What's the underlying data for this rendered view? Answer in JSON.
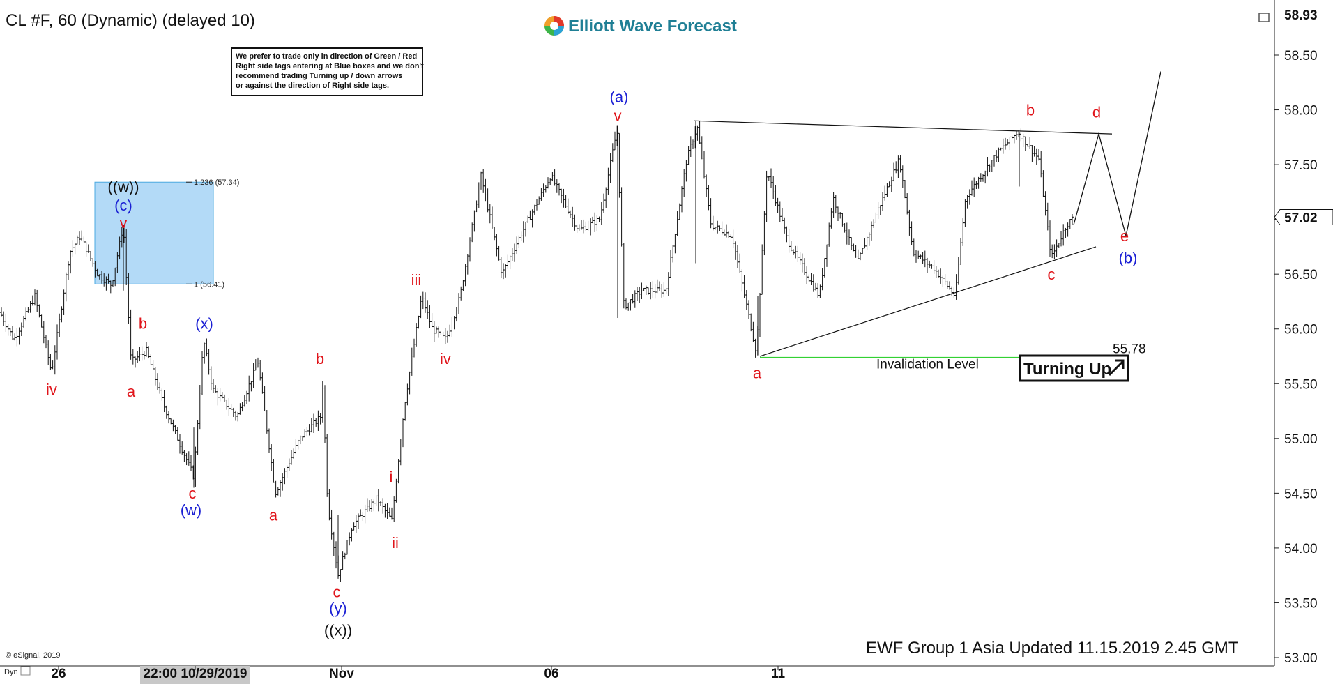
{
  "header": {
    "symbol_title": "CL #F, 60 (Dynamic) (delayed 10)",
    "brand": "Elliott Wave Forecast"
  },
  "note_lines": [
    "We prefer to trade only in direction of Green / Red",
    "Right side tags entering at Blue boxes and we don't",
    "recommend trading Turning up / down arrows",
    "or against the direction of Right side tags."
  ],
  "blue_box": {
    "label_top": "1.236 (57.34)",
    "label_bottom": "1 (56.41)"
  },
  "footer": "EWF Group 1 Asia Updated 11.15.2019 2.45 GMT",
  "copyright": "© eSignal, 2019",
  "bottom_left": "Dyn",
  "invalidation": {
    "label": "Invalidation Level",
    "value": "55.78"
  },
  "turning_tag": "Turning Up",
  "colors": {
    "red": "#e0141a",
    "blue": "#1a1fd4",
    "black": "#111111",
    "box": "#b3daf7",
    "box_border": "#4aa8e0",
    "green": "#33d133"
  },
  "chart_data": {
    "type": "bar",
    "price_labels": {
      "top": "58.93",
      "current": "57.02"
    },
    "ylim": [
      53.0,
      59.0
    ],
    "y_ticks": [
      "58.50",
      "58.00",
      "57.50",
      "57.00",
      "56.50",
      "56.00",
      "55.50",
      "55.00",
      "54.50",
      "54.00",
      "53.50",
      "53.00"
    ],
    "x_ticks": [
      "26",
      "22:00 10/29/2019",
      "Nov",
      "06",
      "11"
    ],
    "price_path": [
      [
        0,
        56.15
      ],
      [
        20,
        55.9
      ],
      [
        50,
        56.3
      ],
      [
        74,
        55.6
      ],
      [
        100,
        56.7
      ],
      [
        115,
        56.85
      ],
      [
        140,
        56.5
      ],
      [
        160,
        56.4
      ],
      [
        177,
        56.95
      ],
      [
        188,
        55.7
      ],
      [
        210,
        55.8
      ],
      [
        235,
        55.3
      ],
      [
        278,
        54.65
      ],
      [
        292,
        55.9
      ],
      [
        305,
        55.45
      ],
      [
        340,
        55.2
      ],
      [
        370,
        55.7
      ],
      [
        395,
        54.5
      ],
      [
        430,
        55.0
      ],
      [
        460,
        55.2
      ],
      [
        462,
        55.6
      ],
      [
        470,
        54.4
      ],
      [
        485,
        53.75
      ],
      [
        505,
        54.2
      ],
      [
        540,
        54.45
      ],
      [
        562,
        54.25
      ],
      [
        580,
        55.3
      ],
      [
        605,
        56.3
      ],
      [
        620,
        56.0
      ],
      [
        640,
        55.9
      ],
      [
        660,
        56.3
      ],
      [
        690,
        57.4
      ],
      [
        720,
        56.5
      ],
      [
        750,
        56.9
      ],
      [
        790,
        57.4
      ],
      [
        830,
        56.9
      ],
      [
        860,
        57.0
      ],
      [
        885,
        57.82
      ],
      [
        895,
        56.2
      ],
      [
        920,
        56.35
      ],
      [
        955,
        56.35
      ],
      [
        985,
        57.55
      ],
      [
        1000,
        57.85
      ],
      [
        1020,
        56.95
      ],
      [
        1050,
        56.85
      ],
      [
        1085,
        55.78
      ],
      [
        1100,
        57.45
      ],
      [
        1130,
        56.8
      ],
      [
        1175,
        56.3
      ],
      [
        1195,
        57.2
      ],
      [
        1230,
        56.6
      ],
      [
        1260,
        57.1
      ],
      [
        1290,
        57.55
      ],
      [
        1310,
        56.7
      ],
      [
        1340,
        56.55
      ],
      [
        1370,
        56.3
      ],
      [
        1385,
        57.2
      ],
      [
        1430,
        57.6
      ],
      [
        1460,
        57.8
      ],
      [
        1490,
        57.55
      ],
      [
        1508,
        56.65
      ],
      [
        1530,
        56.95
      ],
      [
        1540,
        57.02
      ]
    ],
    "projection": [
      [
        1540,
        56.95
      ],
      [
        1576,
        57.78
      ],
      [
        1615,
        56.85
      ],
      [
        1665,
        58.35
      ]
    ],
    "triangle": {
      "upper": [
        [
          995,
          57.9
        ],
        [
          1595,
          57.78
        ]
      ],
      "lower": [
        [
          1090,
          55.75
        ],
        [
          1572,
          56.75
        ]
      ]
    },
    "invalidation_line": [
      [
        1090,
        55.74
      ],
      [
        1595,
        55.74
      ]
    ],
    "wave_labels": [
      {
        "text": "iv",
        "x": 74,
        "y": 55.4,
        "color": "red"
      },
      {
        "text": "((w))",
        "x": 177,
        "y": 57.25,
        "color": "black"
      },
      {
        "text": "(c)",
        "x": 177,
        "y": 57.08,
        "color": "blue"
      },
      {
        "text": "v",
        "x": 177,
        "y": 56.92,
        "color": "red"
      },
      {
        "text": "b",
        "x": 205,
        "y": 56.0,
        "color": "red"
      },
      {
        "text": "a",
        "x": 188,
        "y": 55.38,
        "color": "red"
      },
      {
        "text": "(x)",
        "x": 293,
        "y": 56.0,
        "color": "blue"
      },
      {
        "text": "c",
        "x": 276,
        "y": 54.45,
        "color": "red"
      },
      {
        "text": "(w)",
        "x": 274,
        "y": 54.3,
        "color": "blue"
      },
      {
        "text": "a",
        "x": 392,
        "y": 54.25,
        "color": "red"
      },
      {
        "text": "b",
        "x": 459,
        "y": 55.68,
        "color": "red"
      },
      {
        "text": "c",
        "x": 483,
        "y": 53.55,
        "color": "red"
      },
      {
        "text": "(y)",
        "x": 485,
        "y": 53.4,
        "color": "blue"
      },
      {
        "text": "((x))",
        "x": 485,
        "y": 53.2,
        "color": "black"
      },
      {
        "text": "i",
        "x": 561,
        "y": 54.6,
        "color": "red"
      },
      {
        "text": "ii",
        "x": 567,
        "y": 54.0,
        "color": "red"
      },
      {
        "text": "iii",
        "x": 597,
        "y": 56.4,
        "color": "red"
      },
      {
        "text": "iv",
        "x": 639,
        "y": 55.68,
        "color": "red"
      },
      {
        "text": "(a)",
        "x": 888,
        "y": 58.07,
        "color": "blue"
      },
      {
        "text": "v",
        "x": 886,
        "y": 57.9,
        "color": "red"
      },
      {
        "text": "a",
        "x": 1086,
        "y": 55.55,
        "color": "red"
      },
      {
        "text": "b",
        "x": 1478,
        "y": 57.95,
        "color": "red"
      },
      {
        "text": "d",
        "x": 1573,
        "y": 57.93,
        "color": "red"
      },
      {
        "text": "c",
        "x": 1508,
        "y": 56.45,
        "color": "red"
      },
      {
        "text": "e",
        "x": 1613,
        "y": 56.8,
        "color": "red"
      },
      {
        "text": "(b)",
        "x": 1618,
        "y": 56.6,
        "color": "blue"
      }
    ]
  }
}
